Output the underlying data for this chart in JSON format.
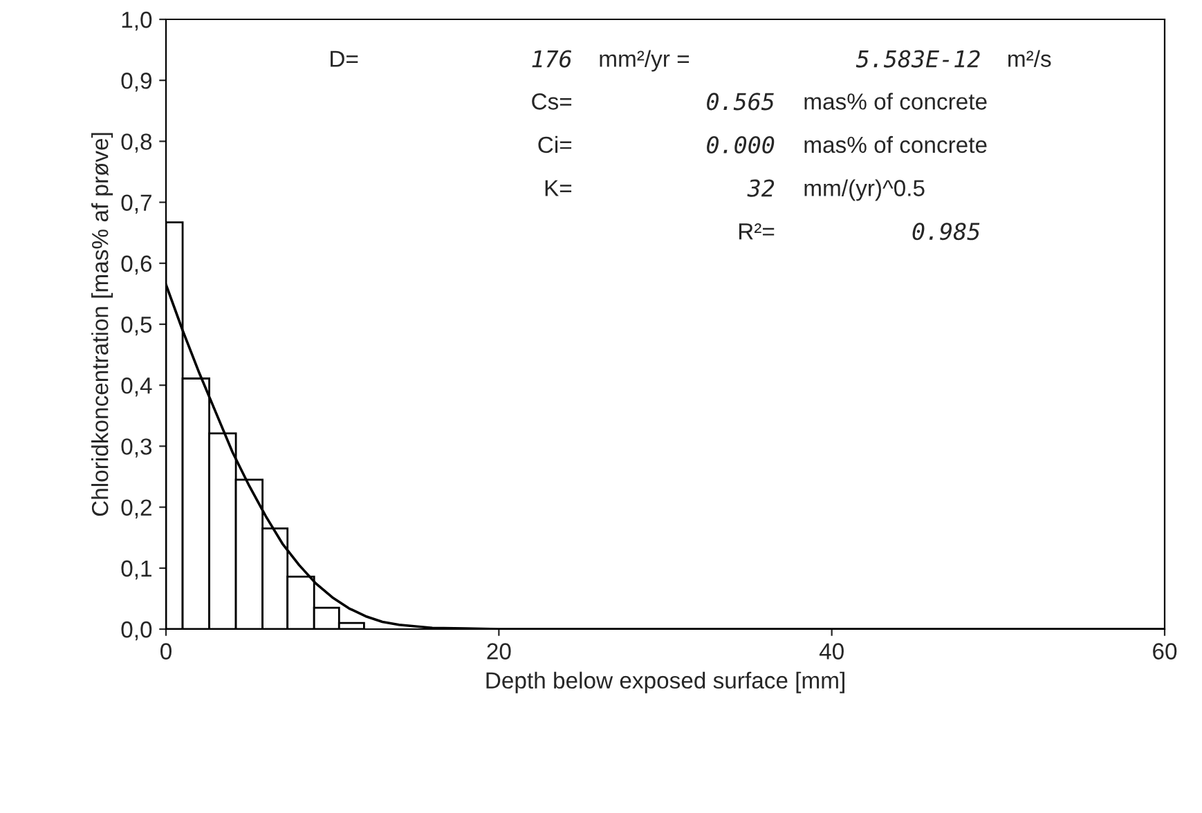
{
  "chart_data": {
    "type": "histogram",
    "xlabel": "Depth below exposed surface [mm]",
    "ylabel": "Chloridkoncentration [mas% af prøve]",
    "bins": [
      0,
      1,
      2.6,
      4.2,
      5.8,
      7.3,
      8.9,
      10.4,
      11.9
    ],
    "values": [
      0.667,
      0.411,
      0.321,
      0.245,
      0.165,
      0.086,
      0.035,
      0.01
    ],
    "color": "#ffffff",
    "series": [
      {
        "type": "line",
        "color": "#000000",
        "x": [
          0,
          1,
          2,
          3,
          4,
          5,
          6,
          7,
          8,
          9,
          10,
          11,
          12,
          13,
          14,
          16,
          18,
          20,
          30,
          40,
          60
        ],
        "values": [
          0.565,
          0.49,
          0.42,
          0.355,
          0.29,
          0.235,
          0.185,
          0.14,
          0.105,
          0.075,
          0.052,
          0.034,
          0.021,
          0.012,
          0.007,
          0.002,
          0.001,
          0,
          0,
          0,
          0
        ]
      }
    ],
    "xlim": [
      0,
      60
    ],
    "xticks": [
      0,
      20,
      40,
      60
    ],
    "ylim": [
      0,
      1
    ],
    "yticks": [
      {
        "value": 0,
        "label": "0,0"
      },
      {
        "value": 0.1,
        "label": "0,1"
      },
      {
        "value": 0.2,
        "label": "0,2"
      },
      {
        "value": 0.3,
        "label": "0,3"
      },
      {
        "value": 0.4,
        "label": "0,4"
      },
      {
        "value": 0.5,
        "label": "0,5"
      },
      {
        "value": 0.6,
        "label": "0,6"
      },
      {
        "value": 0.7,
        "label": "0,7"
      },
      {
        "value": 0.8,
        "label": "0,8"
      },
      {
        "value": 0.9,
        "label": "0,9"
      },
      {
        "value": 1,
        "label": "1,0"
      }
    ],
    "grid": false,
    "legend": false,
    "annotations": [
      "D=",
      "176",
      "mm²/yr =",
      "5.583E-12",
      "m²/s",
      "Cs=",
      "0.565",
      "mas% of concrete",
      "Ci=",
      "0.000",
      "mas% of concrete",
      "K=",
      "32",
      "mm/(yr)^0.5",
      "R²=",
      "0.985"
    ]
  }
}
